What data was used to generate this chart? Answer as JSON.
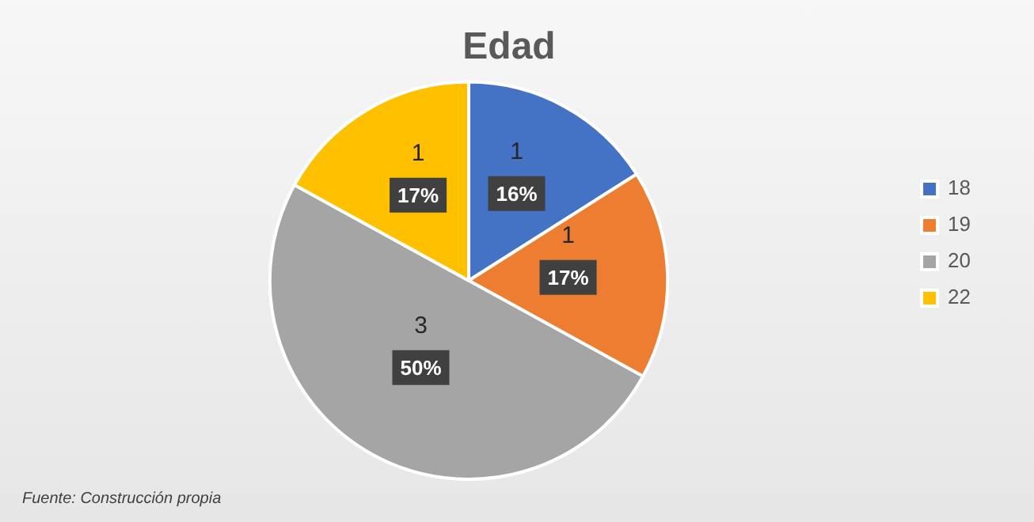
{
  "chart_data": {
    "type": "pie",
    "title": "Edad",
    "categories": [
      "18",
      "19",
      "20",
      "22"
    ],
    "values": [
      16,
      17,
      50,
      17
    ],
    "colors": [
      "#4472c4",
      "#ed7d31",
      "#a5a5a5",
      "#ffc000"
    ],
    "value_labels": [
      "1\n16%",
      "1\n17%",
      "3\n50%",
      "1\n17%"
    ],
    "legend": "right",
    "annotations": [
      "Fuente: Construcción propia"
    ]
  }
}
